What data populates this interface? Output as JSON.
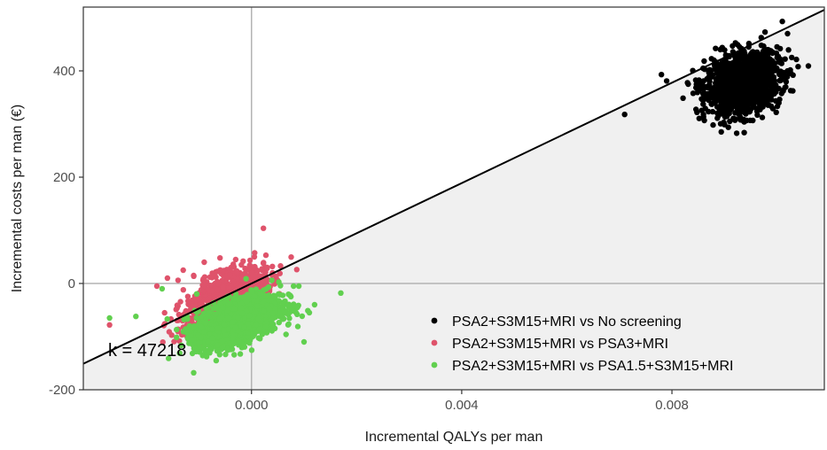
{
  "chart_data": {
    "type": "scatter",
    "xlabel": "Incremental QALYs per man",
    "ylabel": "Incremental costs per man (€)",
    "xlim": [
      -0.0032,
      0.0109
    ],
    "ylim": [
      -200,
      520
    ],
    "x_ticks": [
      {
        "value": 0.0,
        "label": "0.000"
      },
      {
        "value": 0.004,
        "label": "0.004"
      },
      {
        "value": 0.008,
        "label": "0.008"
      }
    ],
    "y_ticks": [
      {
        "value": -200,
        "label": "-200"
      },
      {
        "value": 0,
        "label": "0"
      },
      {
        "value": 200,
        "label": "200"
      },
      {
        "value": 400,
        "label": "400"
      }
    ],
    "reference_lines": {
      "x": 0,
      "y": 0
    },
    "threshold": {
      "k": 47218,
      "label": "k = 47218",
      "region_fill": "#f0f0f0"
    },
    "legend": {
      "position": "bottom-right"
    },
    "series": [
      {
        "name": "PSA2+S3M15+MRI vs No screening",
        "color": "#000000",
        "points": [
          [
            0.0071,
            318
          ],
          [
            0.0078,
            393
          ],
          [
            0.0079,
            381
          ],
          [
            0.0101,
            493
          ],
          [
            0.0102,
            470
          ],
          [
            0.0104,
            408
          ],
          [
            0.0086,
            318
          ],
          [
            0.0088,
            420
          ],
          [
            0.0097,
            448
          ],
          [
            0.0091,
            305
          ]
        ],
        "cloud": {
          "center": [
            0.00935,
            375
          ],
          "spread": [
            0.00035,
            28
          ],
          "rho": 0.25,
          "n": 1400
        }
      },
      {
        "name": "PSA2+S3M15+MRI vs PSA3+MRI",
        "color": "#df536b",
        "points": [
          [
            -0.0027,
            -78
          ],
          [
            -0.0018,
            -5
          ],
          [
            -0.0016,
            10
          ],
          [
            -0.0013,
            25
          ],
          [
            -0.0009,
            40
          ],
          [
            -0.0006,
            48
          ],
          [
            -0.0003,
            45
          ],
          [
            0.0003,
            30
          ],
          [
            0.0004,
            20
          ],
          [
            -0.0011,
            15
          ]
        ],
        "cloud": {
          "center": [
            -0.0005,
            -35
          ],
          "spread": [
            0.00038,
            30
          ],
          "rho": 0.55,
          "n": 1300
        }
      },
      {
        "name": "PSA2+S3M15+MRI vs PSA1.5+S3M15+MRI",
        "color": "#61d04f",
        "points": [
          [
            -0.0027,
            -65
          ],
          [
            -0.0022,
            -62
          ],
          [
            -0.0017,
            -10
          ],
          [
            -0.0011,
            -168
          ],
          [
            0.0008,
            -5
          ],
          [
            0.0011,
            -55
          ],
          [
            0.0012,
            -40
          ],
          [
            0.0017,
            -18
          ],
          [
            0.001,
            -110
          ],
          [
            0.0009,
            -5
          ]
        ],
        "cloud": {
          "center": [
            -0.00025,
            -70
          ],
          "spread": [
            0.0004,
            24
          ],
          "rho": 0.5,
          "n": 1700
        }
      }
    ]
  }
}
